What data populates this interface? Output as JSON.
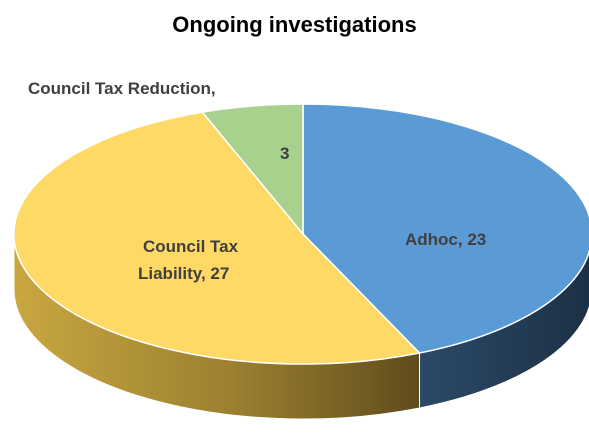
{
  "chart_data": {
    "type": "pie",
    "title": "Ongoing investigations",
    "three_d": true,
    "categories": [
      "Adhoc",
      "Council Tax Liability",
      "Council Tax Reduction"
    ],
    "values": [
      23,
      27,
      3
    ],
    "colors": [
      "#5b9bd5",
      "#ffd966",
      "#a9d18e"
    ],
    "side_colors": [
      "#243e57",
      "#7a6530",
      "#5d7a46"
    ],
    "data_labels": {
      "adhoc": "Adhoc, 23",
      "ctl_line1": "Council Tax",
      "ctl_line2": "Liability, 27",
      "ctr_name": "Council Tax Reduction,",
      "ctr_value": "3"
    },
    "legend": "none"
  }
}
